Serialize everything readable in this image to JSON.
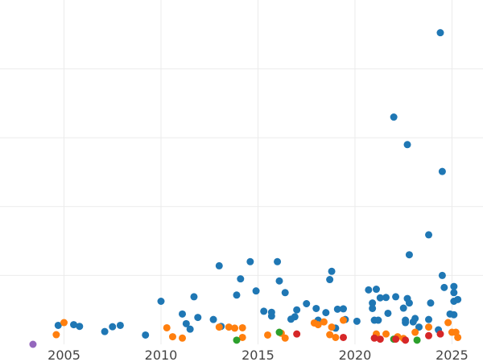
{
  "chart_data": {
    "type": "scatter",
    "title": "",
    "xlabel": "",
    "ylabel": "",
    "xlim": [
      2001.7,
      2026.6
    ],
    "ylim": [
      0,
      1
    ],
    "grid": true,
    "x_ticks": [
      2005,
      2010,
      2015,
      2020,
      2025
    ],
    "y_gridlines": [
      0.2,
      0.4,
      0.6,
      0.8
    ],
    "legend": null,
    "colors": {
      "blue": "#1f77b4",
      "orange": "#ff7f0e",
      "green": "#2ca02c",
      "red": "#d62728",
      "purple": "#9467bd"
    },
    "series": [
      {
        "color": "#1f77b4",
        "points": [
          [
            2004.7,
            0.055
          ],
          [
            2005.5,
            0.057
          ],
          [
            2005.8,
            0.052
          ],
          [
            2007.1,
            0.037
          ],
          [
            2007.5,
            0.051
          ],
          [
            2007.9,
            0.055
          ],
          [
            2009.2,
            0.027
          ],
          [
            2010.0,
            0.125
          ],
          [
            2011.1,
            0.088
          ],
          [
            2011.3,
            0.06
          ],
          [
            2011.5,
            0.044
          ],
          [
            2011.7,
            0.138
          ],
          [
            2011.9,
            0.078
          ],
          [
            2012.7,
            0.072
          ],
          [
            2013.0,
            0.228
          ],
          [
            2013.1,
            0.052
          ],
          [
            2013.9,
            0.143
          ],
          [
            2014.1,
            0.19
          ],
          [
            2014.6,
            0.24
          ],
          [
            2014.9,
            0.155
          ],
          [
            2015.3,
            0.096
          ],
          [
            2015.7,
            0.082
          ],
          [
            2015.7,
            0.093
          ],
          [
            2016.0,
            0.24
          ],
          [
            2016.1,
            0.184
          ],
          [
            2016.4,
            0.15
          ],
          [
            2016.7,
            0.073
          ],
          [
            2016.9,
            0.08
          ],
          [
            2017.0,
            0.1
          ],
          [
            2017.5,
            0.118
          ],
          [
            2018.0,
            0.104
          ],
          [
            2018.1,
            0.07
          ],
          [
            2018.5,
            0.092
          ],
          [
            2018.7,
            0.188
          ],
          [
            2018.8,
            0.212
          ],
          [
            2019.0,
            0.047
          ],
          [
            2019.1,
            0.102
          ],
          [
            2019.4,
            0.103
          ],
          [
            2019.5,
            0.072
          ],
          [
            2020.1,
            0.067
          ],
          [
            2020.7,
            0.158
          ],
          [
            2020.9,
            0.104
          ],
          [
            2020.9,
            0.12
          ],
          [
            2021.0,
            0.07
          ],
          [
            2021.1,
            0.16
          ],
          [
            2021.2,
            0.07
          ],
          [
            2021.3,
            0.135
          ],
          [
            2021.6,
            0.136
          ],
          [
            2021.7,
            0.09
          ],
          [
            2022.0,
            0.66
          ],
          [
            2022.1,
            0.138
          ],
          [
            2022.5,
            0.105
          ],
          [
            2022.6,
            0.07
          ],
          [
            2022.6,
            0.063
          ],
          [
            2022.7,
            0.133
          ],
          [
            2022.7,
            0.58
          ],
          [
            2022.8,
            0.12
          ],
          [
            2022.8,
            0.26
          ],
          [
            2023.0,
            0.065
          ],
          [
            2023.1,
            0.075
          ],
          [
            2023.3,
            0.05
          ],
          [
            2023.8,
            0.072
          ],
          [
            2023.8,
            0.318
          ],
          [
            2023.9,
            0.12
          ],
          [
            2024.3,
            0.042
          ],
          [
            2024.4,
            0.905
          ],
          [
            2024.5,
            0.502
          ],
          [
            2024.5,
            0.2
          ],
          [
            2024.6,
            0.165
          ],
          [
            2024.9,
            0.088
          ],
          [
            2025.1,
            0.15
          ],
          [
            2025.1,
            0.168
          ],
          [
            2025.1,
            0.125
          ],
          [
            2025.1,
            0.086
          ],
          [
            2025.3,
            0.13
          ]
        ]
      },
      {
        "color": "#ff7f0e",
        "points": [
          [
            2004.6,
            0.028
          ],
          [
            2005.0,
            0.063
          ],
          [
            2010.3,
            0.048
          ],
          [
            2010.6,
            0.022
          ],
          [
            2011.1,
            0.018
          ],
          [
            2013.0,
            0.05
          ],
          [
            2013.5,
            0.05
          ],
          [
            2013.8,
            0.047
          ],
          [
            2014.2,
            0.02
          ],
          [
            2014.2,
            0.048
          ],
          [
            2015.5,
            0.027
          ],
          [
            2016.2,
            0.032
          ],
          [
            2016.4,
            0.018
          ],
          [
            2017.9,
            0.062
          ],
          [
            2018.1,
            0.057
          ],
          [
            2018.4,
            0.065
          ],
          [
            2018.7,
            0.028
          ],
          [
            2018.8,
            0.05
          ],
          [
            2019.0,
            0.02
          ],
          [
            2019.4,
            0.07
          ],
          [
            2021.1,
            0.03
          ],
          [
            2021.6,
            0.03
          ],
          [
            2022.2,
            0.022
          ],
          [
            2022.5,
            0.017
          ],
          [
            2023.1,
            0.035
          ],
          [
            2023.8,
            0.05
          ],
          [
            2024.8,
            0.063
          ],
          [
            2025.0,
            0.035
          ],
          [
            2025.2,
            0.035
          ],
          [
            2025.3,
            0.02
          ]
        ]
      },
      {
        "color": "#2ca02c",
        "points": [
          [
            2013.9,
            0.012
          ],
          [
            2016.1,
            0.035
          ],
          [
            2022.0,
            0.015
          ],
          [
            2023.2,
            0.012
          ]
        ]
      },
      {
        "color": "#d62728",
        "points": [
          [
            2017.0,
            0.03
          ],
          [
            2019.4,
            0.02
          ],
          [
            2021.0,
            0.018
          ],
          [
            2021.3,
            0.015
          ],
          [
            2022.1,
            0.015
          ],
          [
            2022.6,
            0.012
          ],
          [
            2023.8,
            0.025
          ],
          [
            2024.4,
            0.03
          ]
        ]
      },
      {
        "color": "#9467bd",
        "points": [
          [
            2003.4,
            0.0
          ]
        ]
      }
    ]
  }
}
